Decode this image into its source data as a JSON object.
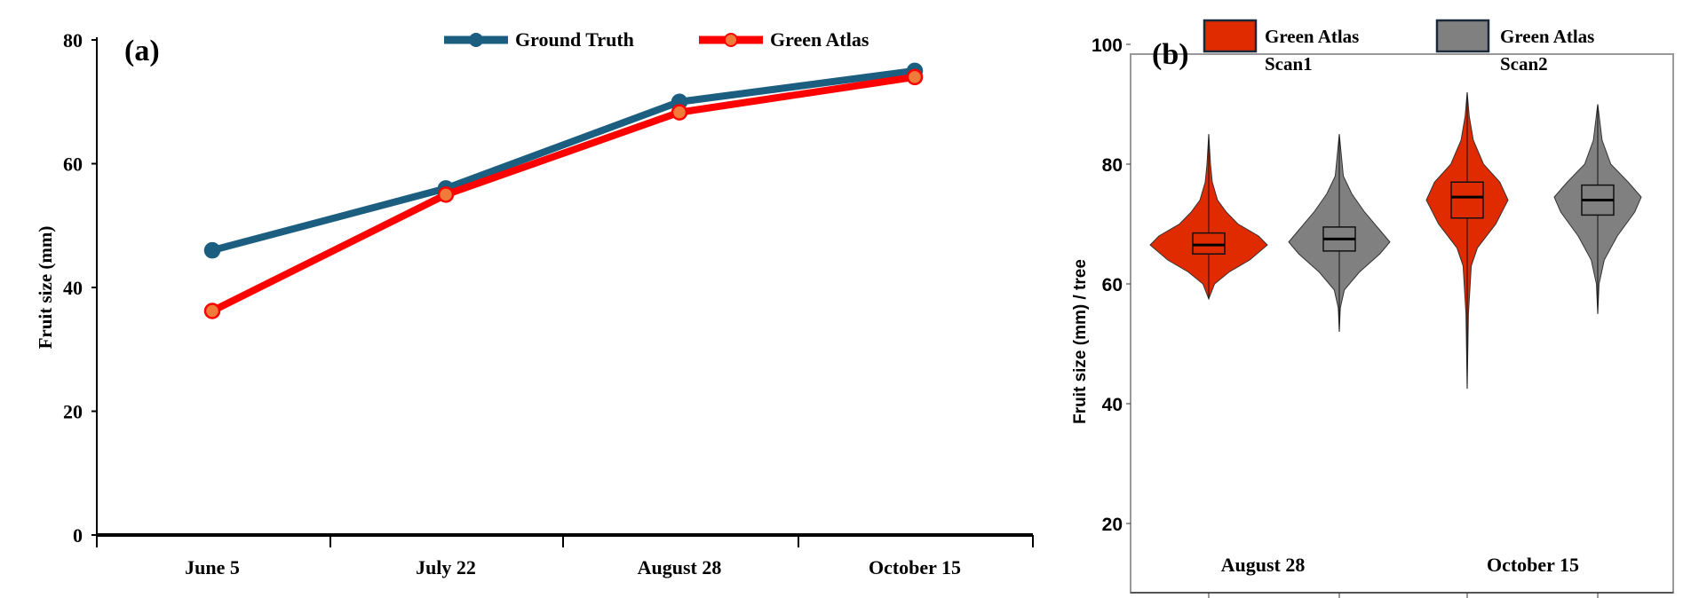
{
  "chart_data": [
    {
      "type": "line",
      "panel_label": "(a)",
      "title": "",
      "xlabel": "",
      "ylabel": "Fruit  size (mm)",
      "categories": [
        "June 5",
        "July 22",
        "August 28",
        "October 15"
      ],
      "ylim": [
        0,
        80
      ],
      "yticks": [
        "0",
        "20",
        "40",
        "60",
        "80"
      ],
      "grid": false,
      "legend": "top",
      "series": [
        {
          "name": "Ground Truth",
          "color": "#1b5e80",
          "marker_color": "#1b5e80",
          "values": [
            46,
            56,
            70,
            75
          ]
        },
        {
          "name": "Green Atlas",
          "color": "#ff0000",
          "marker_color": "#f07a3a",
          "values": [
            36.2,
            55,
            68.3,
            74
          ]
        }
      ]
    },
    {
      "type": "violin",
      "panel_label": "(b)",
      "xlabel": "",
      "ylabel": "Fruit size (mm) / tree",
      "categories": [
        "August 28",
        "October 15"
      ],
      "ylim": [
        17,
        104
      ],
      "yticks": [
        "20",
        "40",
        "60",
        "80",
        "100"
      ],
      "grid": false,
      "legend": "top",
      "series": [
        {
          "name_line1": "Green Atlas",
          "name_line2": "Scan1",
          "color": "#e02a00"
        },
        {
          "name_line1": "Green Atlas",
          "name_line2": "Scan2",
          "color": "#808080"
        }
      ],
      "violins": [
        {
          "category": "August 28",
          "series": 0,
          "min": 57.5,
          "q1": 65,
          "median": 66.5,
          "q3": 68.5,
          "max": 85,
          "density": [
            [
              57.5,
              0
            ],
            [
              60,
              0.1
            ],
            [
              62,
              0.35
            ],
            [
              64,
              0.7
            ],
            [
              66.5,
              1
            ],
            [
              68,
              0.85
            ],
            [
              70,
              0.5
            ],
            [
              72,
              0.3
            ],
            [
              74,
              0.15
            ],
            [
              77,
              0.06
            ],
            [
              80,
              0.03
            ],
            [
              85,
              0
            ]
          ]
        },
        {
          "category": "August 28",
          "series": 1,
          "min": 52,
          "q1": 65.5,
          "median": 67.5,
          "q3": 69.5,
          "max": 85,
          "density": [
            [
              52,
              0
            ],
            [
              56,
              0.02
            ],
            [
              59,
              0.1
            ],
            [
              62,
              0.4
            ],
            [
              65,
              0.8
            ],
            [
              67,
              1
            ],
            [
              69,
              0.8
            ],
            [
              72,
              0.5
            ],
            [
              75,
              0.25
            ],
            [
              78,
              0.08
            ],
            [
              85,
              0
            ]
          ]
        },
        {
          "category": "October 15",
          "series": 0,
          "min": 42.5,
          "q1": 71,
          "median": 74.5,
          "q3": 77,
          "max": 92,
          "density": [
            [
              42.5,
              0
            ],
            [
              55,
              0.03
            ],
            [
              63,
              0.1
            ],
            [
              66,
              0.25
            ],
            [
              70,
              0.7
            ],
            [
              74,
              1
            ],
            [
              77,
              0.8
            ],
            [
              80,
              0.4
            ],
            [
              84,
              0.15
            ],
            [
              88,
              0.05
            ],
            [
              92,
              0
            ]
          ]
        },
        {
          "category": "October 15",
          "series": 1,
          "min": 55,
          "q1": 71.5,
          "median": 74,
          "q3": 76.5,
          "max": 90,
          "density": [
            [
              55,
              0
            ],
            [
              60,
              0.03
            ],
            [
              64,
              0.15
            ],
            [
              68,
              0.45
            ],
            [
              72,
              0.85
            ],
            [
              74.5,
              1
            ],
            [
              77,
              0.7
            ],
            [
              80,
              0.3
            ],
            [
              84,
              0.1
            ],
            [
              90,
              0
            ]
          ]
        }
      ]
    }
  ]
}
